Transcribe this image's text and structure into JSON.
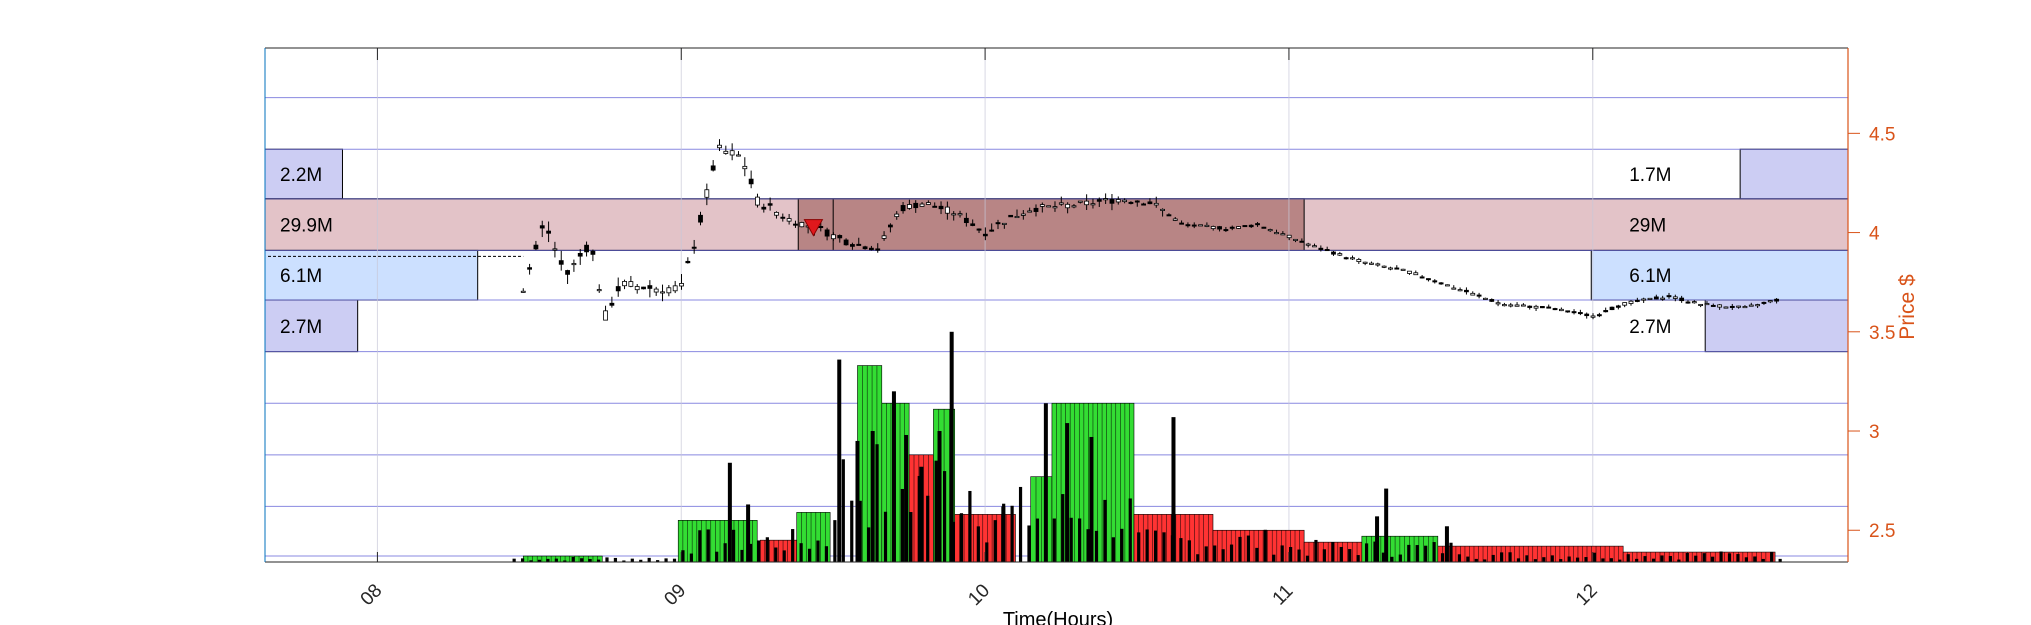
{
  "chart_data": {
    "type": "candlestick",
    "xlabel": "Time(Hours)",
    "ylabel": "Price $",
    "xlim": [
      7.63,
      12.84
    ],
    "ylim": [
      2.34,
      4.93
    ],
    "x_ticks": [
      {
        "value": 8,
        "label": "08"
      },
      {
        "value": 9,
        "label": "09"
      },
      {
        "value": 10,
        "label": "10"
      },
      {
        "value": 11,
        "label": "11"
      },
      {
        "value": 12,
        "label": "12"
      }
    ],
    "y_ticks": [
      {
        "value": 2.5,
        "label": "2.5"
      },
      {
        "value": 3,
        "label": "3"
      },
      {
        "value": 3.5,
        "label": "3.5"
      },
      {
        "value": 4,
        "label": "4"
      },
      {
        "value": 4.5,
        "label": "4.5"
      }
    ],
    "price_levels": [
      4.68,
      4.42,
      4.17,
      3.91,
      3.66,
      3.4,
      3.14,
      2.88,
      2.62,
      2.37
    ],
    "grid": true,
    "colors": {
      "axis_right": "#d95319",
      "axis_left": "#0072bd",
      "grid": "#6b6bd8",
      "candle": "#000000",
      "up_volume": "#33dd33",
      "down_volume": "#ff3333",
      "left_red_band": "#e3c3c8",
      "value_area": "#b88585",
      "blue_band": "#cce0ff",
      "lavender_band": "#cccdf3",
      "marker": "#e0181c"
    },
    "volume_profile_bands": [
      {
        "side": "left",
        "label": "2.2M",
        "low": 4.17,
        "high": 4.42,
        "x_end": 7.885,
        "color": "lavender"
      },
      {
        "side": "left",
        "label": "29.9M",
        "low": 3.91,
        "high": 4.17,
        "x_end": 12.84,
        "color": "red"
      },
      {
        "side": "left",
        "label": "6.1M",
        "low": 3.66,
        "high": 3.91,
        "x_end": 8.33,
        "color": "blue"
      },
      {
        "side": "left",
        "label": "2.7M",
        "low": 3.4,
        "high": 3.66,
        "x_end": 7.935,
        "color": "lavender"
      },
      {
        "side": "right",
        "label": "1.7M",
        "low": 4.17,
        "high": 4.42,
        "x_start": 12.485,
        "color": "lavender"
      },
      {
        "side": "right",
        "label": "29M",
        "low": 3.91,
        "high": 4.17,
        "x_start": 7.63,
        "color": "red"
      },
      {
        "side": "right",
        "label": "6.1M",
        "low": 3.66,
        "high": 3.91,
        "x_start": 11.995,
        "color": "blue"
      },
      {
        "side": "right",
        "label": "2.7M",
        "low": 3.4,
        "high": 3.66,
        "x_start": 12.37,
        "color": "lavender"
      }
    ],
    "value_area": {
      "x_start": 9.385,
      "x_end": 11.05,
      "low": 3.91,
      "high": 4.17,
      "divider_x": 9.5
    },
    "marker": {
      "x": 9.435,
      "y": 4.02,
      "shape": "down-triangle"
    },
    "volume_blocks": [
      {
        "x0": 8.48,
        "x1": 8.74,
        "top": 2.37,
        "color": "green"
      },
      {
        "x0": 8.99,
        "x1": 9.25,
        "top": 2.55,
        "color": "green"
      },
      {
        "x0": 9.26,
        "x1": 9.38,
        "top": 2.45,
        "color": "red"
      },
      {
        "x0": 9.38,
        "x1": 9.49,
        "top": 2.59,
        "color": "green"
      },
      {
        "x0": 9.58,
        "x1": 9.66,
        "top": 3.33,
        "color": "green"
      },
      {
        "x0": 9.66,
        "x1": 9.75,
        "top": 3.14,
        "color": "green"
      },
      {
        "x0": 9.75,
        "x1": 9.83,
        "top": 2.88,
        "color": "red"
      },
      {
        "x0": 9.83,
        "x1": 9.9,
        "top": 3.11,
        "color": "green"
      },
      {
        "x0": 9.9,
        "x1": 10.1,
        "top": 2.58,
        "color": "red"
      },
      {
        "x0": 10.15,
        "x1": 10.22,
        "top": 2.77,
        "color": "green"
      },
      {
        "x0": 10.22,
        "x1": 10.49,
        "top": 3.14,
        "color": "green"
      },
      {
        "x0": 10.49,
        "x1": 10.75,
        "top": 2.58,
        "color": "red"
      },
      {
        "x0": 10.75,
        "x1": 11.05,
        "top": 2.5,
        "color": "red"
      },
      {
        "x0": 11.05,
        "x1": 11.24,
        "top": 2.44,
        "color": "red"
      },
      {
        "x0": 11.24,
        "x1": 11.49,
        "top": 2.47,
        "color": "green"
      },
      {
        "x0": 11.49,
        "x1": 12.1,
        "top": 2.42,
        "color": "red"
      },
      {
        "x0": 12.1,
        "x1": 12.6,
        "top": 2.39,
        "color": "red"
      }
    ],
    "volume_spikes": [
      {
        "x": 9.16,
        "top": 2.84
      },
      {
        "x": 9.22,
        "top": 2.63
      },
      {
        "x": 9.52,
        "top": 3.36
      },
      {
        "x": 9.58,
        "top": 2.95
      },
      {
        "x": 9.63,
        "top": 3.0
      },
      {
        "x": 9.7,
        "top": 3.2
      },
      {
        "x": 9.74,
        "top": 2.98
      },
      {
        "x": 9.79,
        "top": 2.82
      },
      {
        "x": 9.85,
        "top": 3.0
      },
      {
        "x": 9.89,
        "top": 3.5
      },
      {
        "x": 10.06,
        "top": 2.62
      },
      {
        "x": 10.2,
        "top": 3.14
      },
      {
        "x": 10.27,
        "top": 3.04
      },
      {
        "x": 10.35,
        "top": 2.97
      },
      {
        "x": 10.62,
        "top": 3.07
      },
      {
        "x": 11.29,
        "top": 2.57
      },
      {
        "x": 11.32,
        "top": 2.71
      },
      {
        "x": 11.52,
        "top": 2.52
      }
    ],
    "candles_summary": "intraday 5-minute candles from 08:25 to 12:40; rally to 4.48 near 09:10, range 3.98-4.22 until 11:00, decline to 3.55 by 12:00, recovering to 3.66"
  }
}
